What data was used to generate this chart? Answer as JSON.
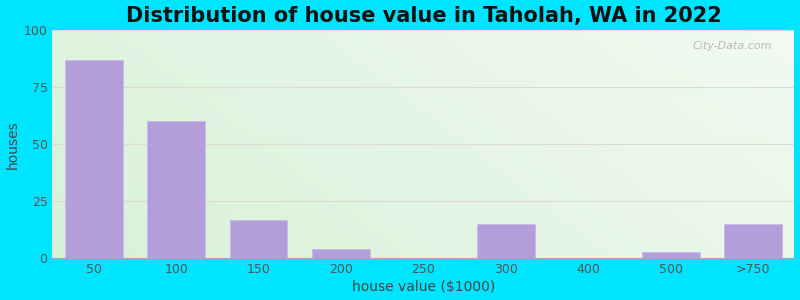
{
  "title": "Distribution of house value in Taholah, WA in 2022",
  "xlabel": "house value ($1000)",
  "ylabel": "houses",
  "bin_edges": [
    0,
    1,
    2,
    3,
    4,
    5,
    6,
    7,
    8,
    9
  ],
  "tick_labels": [
    "50",
    "100",
    "150",
    "200",
    "250",
    "300",
    "400",
    "500",
    ">750"
  ],
  "bar_values": [
    87,
    60,
    17,
    4,
    0,
    15,
    0,
    3,
    15
  ],
  "bar_color": "#b39ddb",
  "bar_edgecolor": "#c8b8e8",
  "ylim": [
    0,
    100
  ],
  "yticks": [
    0,
    25,
    50,
    75,
    100
  ],
  "bg_color_topleft": "#d8eed8",
  "bg_color_topright": "#f5faf5",
  "bg_color_bottomleft": "#c8e8c8",
  "bg_color_bottomright": "#eef8ee",
  "outer_bg": "#00e5ff",
  "title_fontsize": 15,
  "axis_label_fontsize": 10,
  "tick_fontsize": 9,
  "watermark_text": "City-Data.com"
}
